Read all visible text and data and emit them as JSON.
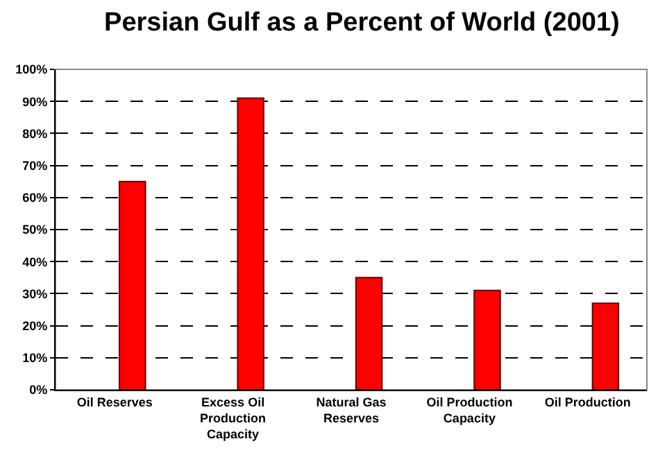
{
  "chart_data": {
    "type": "bar",
    "title": "Persian Gulf as a Percent of World (2001)",
    "categories": [
      "Oil Reserves",
      "Excess Oil Production Capacity",
      "Natural Gas Reserves",
      "Oil Production Capacity",
      "Oil Production"
    ],
    "values": [
      65,
      91,
      35,
      31,
      27
    ],
    "color": "#ff0000",
    "ylim": [
      0,
      100
    ],
    "yticks": [
      {
        "value": 0,
        "label": "0%"
      },
      {
        "value": 10,
        "label": "10%"
      },
      {
        "value": 20,
        "label": "20%"
      },
      {
        "value": 30,
        "label": "30%"
      },
      {
        "value": 40,
        "label": "40%"
      },
      {
        "value": 50,
        "label": "50%"
      },
      {
        "value": 60,
        "label": "60%"
      },
      {
        "value": 70,
        "label": "70%"
      },
      {
        "value": 80,
        "label": "80%"
      },
      {
        "value": 90,
        "label": "90%"
      },
      {
        "value": 100,
        "label": "100%"
      }
    ],
    "grid": "y"
  }
}
